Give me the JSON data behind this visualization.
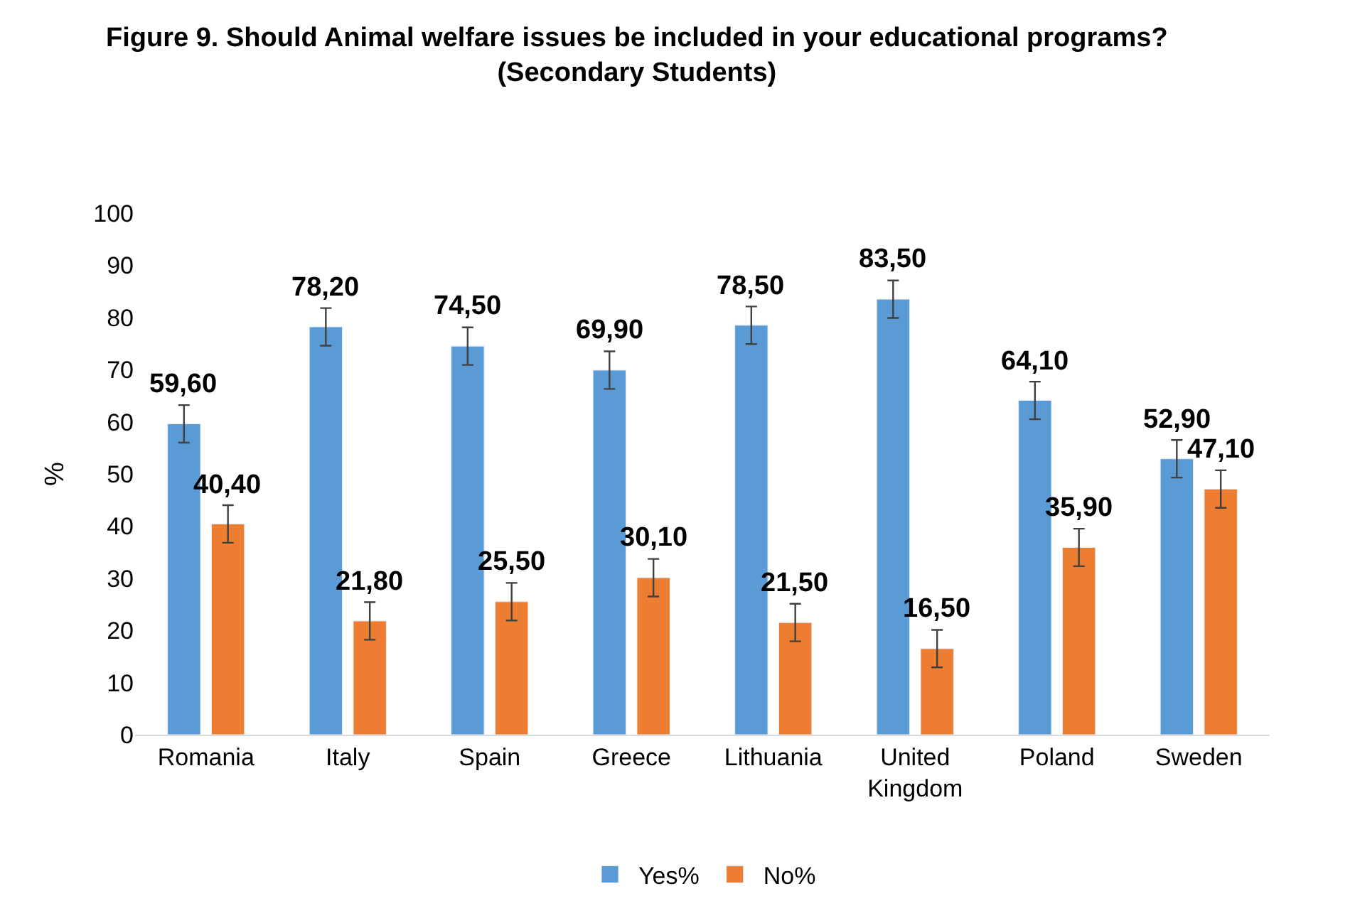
{
  "chart_data": {
    "type": "bar",
    "title": "Figure 9. Should Animal welfare issues be included in your educational programs?\n(Secondary Students)",
    "ylabel": "%",
    "categories": [
      "Romania",
      "Italy",
      "Spain",
      "Greece",
      "Lithuania",
      "United Kingdom",
      "Poland",
      "Sweden"
    ],
    "series": [
      {
        "name": "Yes%",
        "color": "#5b9bd5",
        "values": [
          59.6,
          78.2,
          74.5,
          69.9,
          78.5,
          83.5,
          64.1,
          52.9
        ],
        "value_labels": [
          "59,60",
          "78,20",
          "74,50",
          "69,90",
          "78,50",
          "83,50",
          "64,10",
          "52,90"
        ],
        "errors": [
          3.6,
          3.6,
          3.6,
          3.6,
          3.6,
          3.6,
          3.6,
          3.6
        ]
      },
      {
        "name": "No%",
        "color": "#ed7d31",
        "values": [
          40.4,
          21.8,
          25.5,
          30.1,
          21.5,
          16.5,
          35.9,
          47.1
        ],
        "value_labels": [
          "40,40",
          "21,80",
          "25,50",
          "30,10",
          "21,50",
          "16,50",
          "35,90",
          "47,10"
        ],
        "errors": [
          3.6,
          3.6,
          3.6,
          3.6,
          3.6,
          3.6,
          3.6,
          3.6
        ]
      }
    ],
    "ylim": [
      0,
      100
    ],
    "yticks": [
      0,
      10,
      20,
      30,
      40,
      50,
      60,
      70,
      80,
      90,
      100
    ],
    "grid": false,
    "legend": "bottom"
  }
}
